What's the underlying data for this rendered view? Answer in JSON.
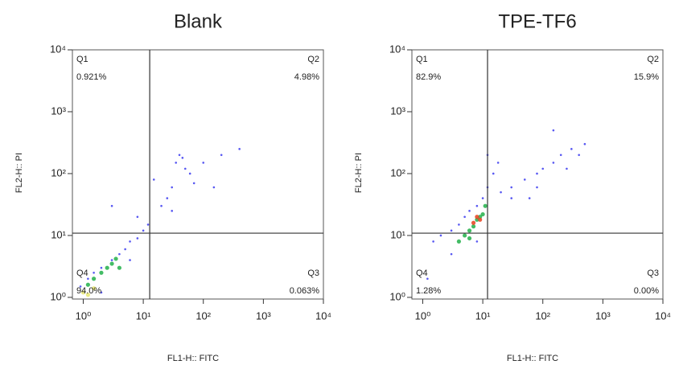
{
  "chart_data": [
    {
      "type": "scatter",
      "title": "Blank",
      "xlabel": "FL1-H:: FITC",
      "ylabel": "FL2-H:: PI",
      "log_scale": true,
      "grid": false,
      "xlim": [
        0.66,
        10000
      ],
      "ylim": [
        0.94,
        10000
      ],
      "xticks": [
        {
          "value": 1,
          "label": "10⁰"
        },
        {
          "value": 10,
          "label": "10¹"
        },
        {
          "value": 100,
          "label": "10²"
        },
        {
          "value": 1000,
          "label": "10³"
        },
        {
          "value": 10000,
          "label": "10⁴"
        }
      ],
      "yticks": [
        {
          "value": 1,
          "label": "10⁰"
        },
        {
          "value": 10,
          "label": "10¹"
        },
        {
          "value": 100,
          "label": "10²"
        },
        {
          "value": 1000,
          "label": "10³"
        },
        {
          "value": 10000,
          "label": "10⁴"
        }
      ],
      "gate": {
        "x": 12.8,
        "y": 10.9
      },
      "quadrants": {
        "names": [
          "Q1",
          "Q2",
          "Q3",
          "Q4"
        ],
        "values": [
          0.921,
          4.98,
          0.063,
          94.0
        ],
        "value_labels": [
          "0.921%",
          "4.98%",
          "0.063%",
          "94.0%"
        ]
      },
      "series": [
        {
          "color": "#3b3bf0",
          "x": [
            2,
            3,
            1.5,
            4,
            5,
            6,
            8,
            10,
            12,
            20,
            25,
            30,
            35,
            40,
            45,
            50,
            60,
            100,
            200,
            400,
            3,
            1.2,
            8,
            15,
            0.9,
            2,
            6,
            30,
            70,
            150
          ],
          "values": [
            3,
            4,
            2.5,
            5,
            6,
            8,
            9,
            12,
            15,
            30,
            40,
            60,
            150,
            200,
            180,
            120,
            100,
            150,
            200,
            250,
            30,
            2,
            20,
            80,
            1.5,
            1.2,
            4,
            25,
            70,
            60
          ]
        },
        {
          "color": "#e8e870",
          "x": [
            1,
            1.5,
            1.2
          ],
          "values": [
            1.2,
            1.4,
            1.1
          ]
        },
        {
          "color": "#22b04a",
          "x": [
            1.5,
            2,
            2.5,
            3,
            1.2,
            4,
            3.5
          ],
          "values": [
            2,
            2.5,
            3,
            3.5,
            1.6,
            3,
            4.2
          ]
        }
      ]
    },
    {
      "type": "scatter",
      "title": "TPE-TF6",
      "xlabel": "FL1-H:: FITC",
      "ylabel": "FL2-H:: PI",
      "log_scale": true,
      "grid": false,
      "xlim": [
        0.66,
        10000
      ],
      "ylim": [
        0.94,
        10000
      ],
      "xticks": [
        {
          "value": 1,
          "label": "10⁰"
        },
        {
          "value": 10,
          "label": "10¹"
        },
        {
          "value": 100,
          "label": "10²"
        },
        {
          "value": 1000,
          "label": "10³"
        },
        {
          "value": 10000,
          "label": "10⁴"
        }
      ],
      "yticks": [
        {
          "value": 1,
          "label": "10⁰"
        },
        {
          "value": 10,
          "label": "10¹"
        },
        {
          "value": 100,
          "label": "10²"
        },
        {
          "value": 1000,
          "label": "10³"
        },
        {
          "value": 10000,
          "label": "10⁴"
        }
      ],
      "gate": {
        "x": 12,
        "y": 10.9
      },
      "quadrants": {
        "names": [
          "Q1",
          "Q2",
          "Q3",
          "Q4"
        ],
        "values": [
          82.9,
          15.9,
          0,
          1.28
        ],
        "value_labels": [
          "82.9%",
          "15.9%",
          "0.00%",
          "1.28%"
        ]
      },
      "series": [
        {
          "color": "#3b3bf0",
          "x": [
            1.5,
            2,
            3,
            4,
            5,
            6,
            8,
            10,
            12,
            15,
            18,
            20,
            30,
            50,
            80,
            100,
            150,
            200,
            300,
            500,
            400,
            250,
            60,
            12,
            30,
            150,
            1.2,
            3,
            80,
            8
          ],
          "values": [
            8,
            10,
            12,
            15,
            20,
            25,
            30,
            40,
            60,
            100,
            150,
            50,
            60,
            80,
            100,
            120,
            150,
            200,
            250,
            300,
            200,
            120,
            40,
            200,
            40,
            500,
            2,
            5,
            60,
            8
          ]
        },
        {
          "color": "#22b04a",
          "x": [
            5,
            6,
            7,
            8,
            9,
            10,
            6,
            11,
            4
          ],
          "values": [
            10,
            12,
            14,
            18,
            20,
            22,
            9,
            30,
            8
          ]
        },
        {
          "color": "#e8401c",
          "x": [
            7,
            8,
            9
          ],
          "values": [
            16,
            20,
            18
          ]
        }
      ]
    }
  ]
}
